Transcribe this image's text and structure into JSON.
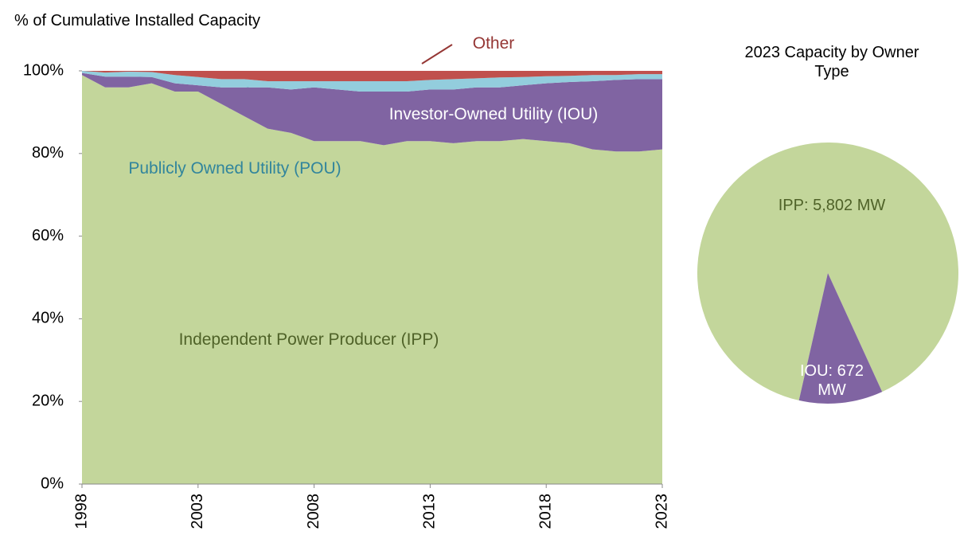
{
  "chart_data": [
    {
      "type": "area",
      "y_label": "% of Cumulative Installed Capacity",
      "stacked": true,
      "x": [
        1998,
        1999,
        2000,
        2001,
        2002,
        2003,
        2004,
        2005,
        2006,
        2007,
        2008,
        2009,
        2010,
        2011,
        2012,
        2013,
        2014,
        2015,
        2016,
        2017,
        2018,
        2019,
        2020,
        2021,
        2022,
        2023
      ],
      "xlim": [
        1998,
        2023
      ],
      "xticks": [
        1998,
        2003,
        2008,
        2013,
        2018,
        2023
      ],
      "ylim": [
        0,
        100
      ],
      "yticks": [
        {
          "value": 0,
          "label": "0%"
        },
        {
          "value": 20,
          "label": "20%"
        },
        {
          "value": 40,
          "label": "40%"
        },
        {
          "value": 60,
          "label": "60%"
        },
        {
          "value": 80,
          "label": "80%"
        },
        {
          "value": 100,
          "label": "100%"
        }
      ],
      "series": [
        {
          "name": "Independent Power Producer (IPP)",
          "color": "#c3d69b",
          "label_color": "#4f6228",
          "values": [
            99,
            96,
            96,
            97,
            95,
            95,
            92,
            89,
            86,
            85,
            83,
            83,
            83,
            82,
            83,
            83,
            82.5,
            83,
            83,
            83.5,
            83,
            82.5,
            81,
            80.5,
            80.5,
            81
          ]
        },
        {
          "name": "Investor-Owned Utility (IOU)",
          "color": "#8064a2",
          "label_color": "#ffffff",
          "values": [
            0.5,
            2.6,
            2.6,
            1.5,
            2,
            1.5,
            4,
            7,
            10,
            10.5,
            13,
            12.5,
            12,
            13,
            12,
            12.5,
            13,
            13,
            13,
            13,
            14,
            14.8,
            16.5,
            17.3,
            17.5,
            17
          ]
        },
        {
          "name": "Publicly Owned Utility (POU)",
          "color": "#93cddd",
          "label_color": "#31859c",
          "values": [
            0.5,
            1,
            1.2,
            1.2,
            2,
            2,
            2,
            2,
            1.5,
            2,
            1.5,
            2,
            2.5,
            2.5,
            2.5,
            2.3,
            2.5,
            2.2,
            2.4,
            2,
            1.7,
            1.5,
            1.5,
            1.2,
            1.2,
            1.2
          ]
        },
        {
          "name": "Other",
          "color": "#c0504d",
          "label_color": "#953735",
          "values": [
            0,
            0.4,
            0.2,
            0.3,
            1,
            1.5,
            2,
            2,
            2.5,
            2.5,
            2.5,
            2.5,
            2.5,
            2.5,
            2.5,
            2.2,
            2,
            1.8,
            1.6,
            1.5,
            1.3,
            1.2,
            1,
            1,
            0.8,
            0.8
          ]
        }
      ]
    },
    {
      "type": "pie",
      "title": "2023 Capacity by Owner Type",
      "values": [
        5802,
        672
      ],
      "value_labels": [
        "IPP: 5,802 MW",
        "IOU: 672 MW"
      ],
      "colors": [
        "#c3d69b",
        "#8064a2"
      ],
      "label_colors": [
        "#4f6228",
        "#ffffff"
      ]
    }
  ]
}
